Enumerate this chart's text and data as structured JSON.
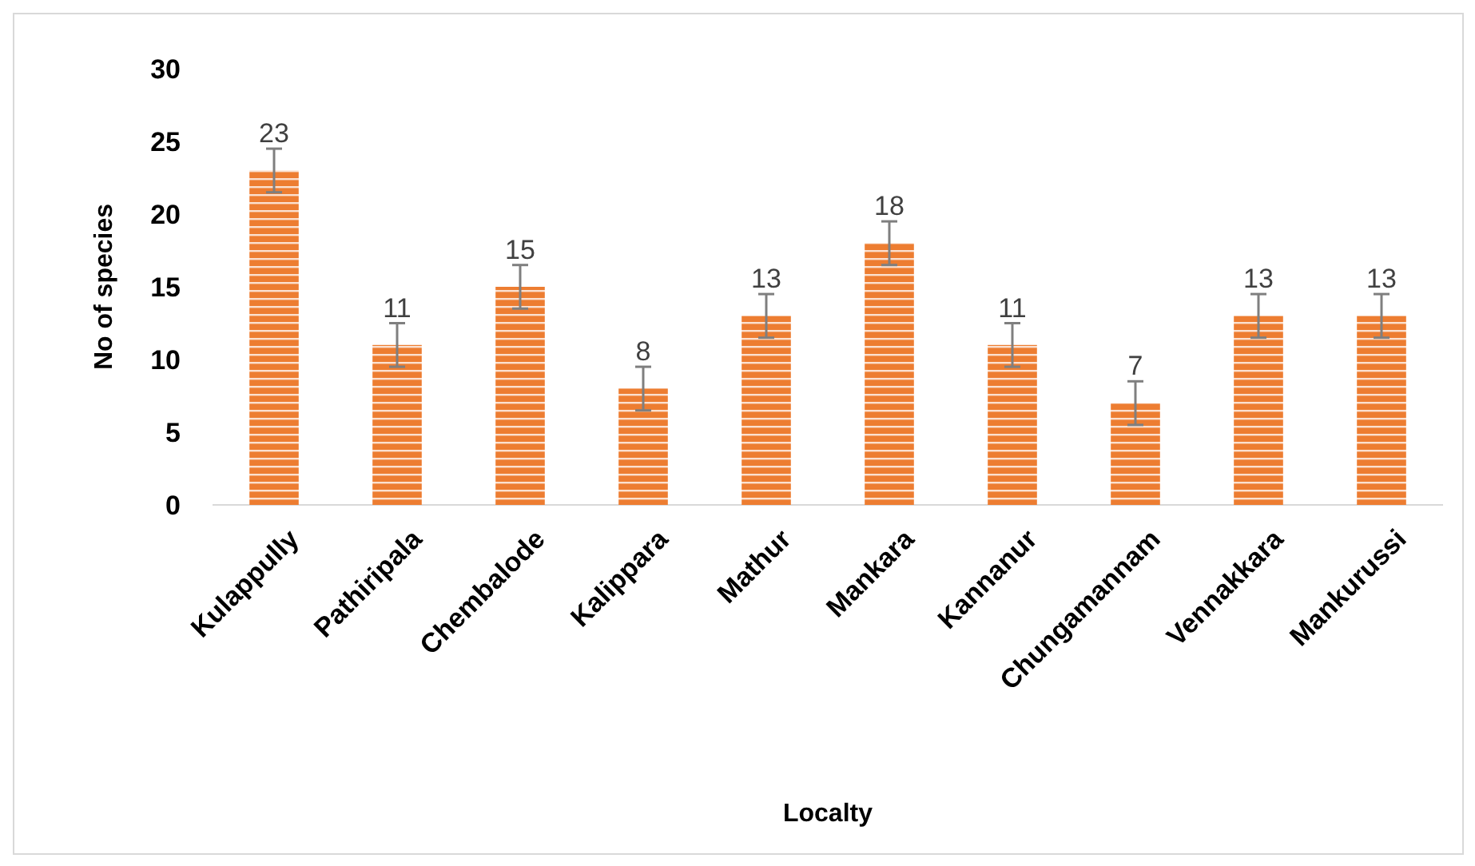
{
  "chart_data": {
    "type": "bar",
    "xlabel": "Localty",
    "ylabel": "No of species",
    "categories": [
      "Kulappully",
      "Pathiripala",
      "Chembalode",
      "Kalippara",
      "Mathur",
      "Mankara",
      "Kannanur",
      "Chungamannam",
      "Vennakkara",
      "Mankurussi"
    ],
    "values": [
      23,
      11,
      15,
      8,
      13,
      18,
      11,
      7,
      13,
      13
    ],
    "errors": [
      1.5,
      1.5,
      1.5,
      1.5,
      1.5,
      1.5,
      1.5,
      1.5,
      1.5,
      1.5
    ],
    "color": "#ed7d31",
    "ylim": [
      0,
      30
    ],
    "yticks": [
      0,
      5,
      10,
      15,
      20,
      25,
      30
    ],
    "data_labels": true
  }
}
